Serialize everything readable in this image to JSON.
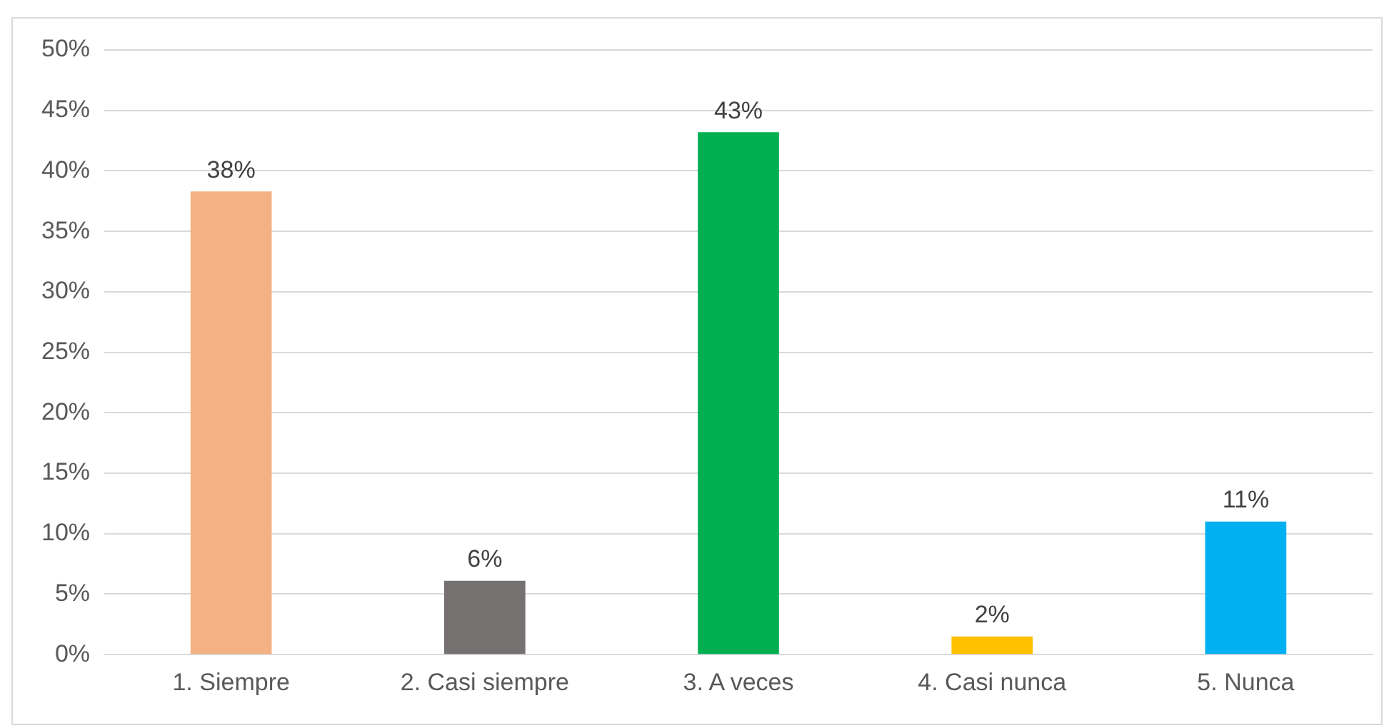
{
  "chart_data": {
    "type": "bar",
    "categories": [
      "1. Siempre",
      "2. Casi siempre",
      "3. A veces",
      "4. Casi nunca",
      "5. Nunca"
    ],
    "values": [
      38.3,
      6.1,
      43.2,
      1.5,
      11.0
    ],
    "colors": [
      "#f4b183",
      "#767171",
      "#00b050",
      "#ffc000",
      "#00b0f0"
    ],
    "value_labels": [
      "38%",
      "6%",
      "43%",
      "2%",
      "11%"
    ],
    "ylim": [
      0,
      50
    ],
    "yticks": [
      {
        "value": 0,
        "label": "0%"
      },
      {
        "value": 5,
        "label": "5%"
      },
      {
        "value": 10,
        "label": "10%"
      },
      {
        "value": 15,
        "label": "15%"
      },
      {
        "value": 20,
        "label": "20%"
      },
      {
        "value": 25,
        "label": "25%"
      },
      {
        "value": 30,
        "label": "30%"
      },
      {
        "value": 35,
        "label": "35%"
      },
      {
        "value": 40,
        "label": "40%"
      },
      {
        "value": 45,
        "label": "45%"
      },
      {
        "value": 50,
        "label": "50%"
      }
    ],
    "grid": "y",
    "legend": false
  }
}
